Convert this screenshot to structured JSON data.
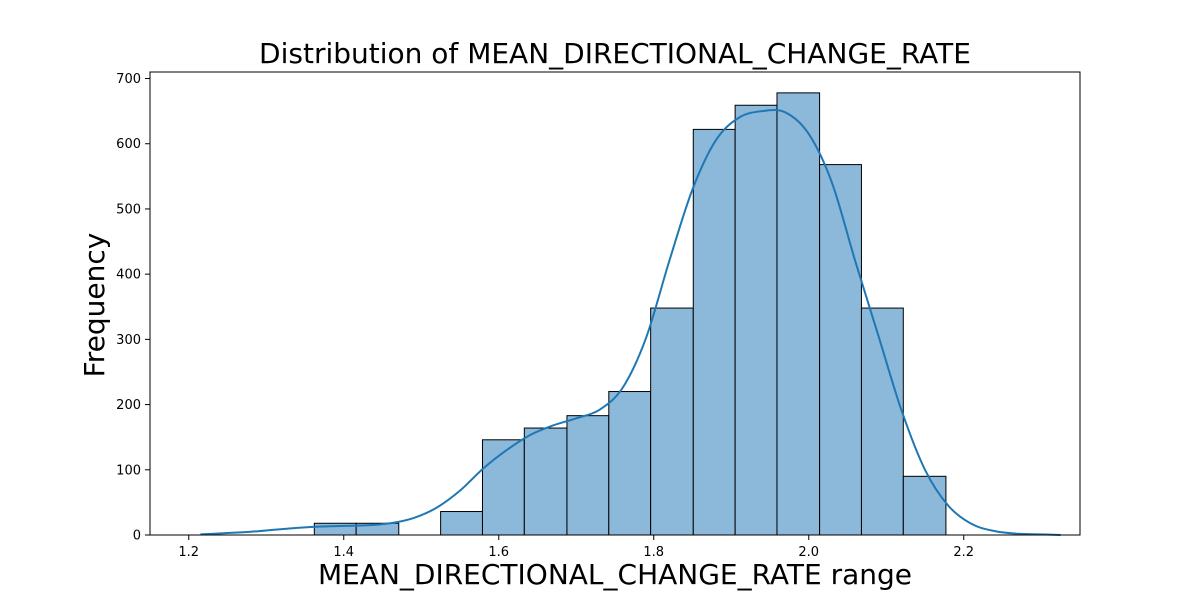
{
  "chart_data": {
    "type": "bar",
    "title": "Distribution of MEAN_DIRECTIONAL_CHANGE_RATE",
    "xlabel": "MEAN_DIRECTIONAL_CHANGE_RATE range",
    "ylabel": "Frequency",
    "xlim": [
      1.15,
      2.35
    ],
    "ylim": [
      0,
      710
    ],
    "x_ticks": [
      1.2,
      1.4,
      1.6,
      1.8,
      2.0,
      2.2
    ],
    "x_tick_labels": [
      "1.2",
      "1.4",
      "1.6",
      "1.8",
      "2.0",
      "2.2"
    ],
    "y_ticks": [
      0,
      100,
      200,
      300,
      400,
      500,
      600,
      700
    ],
    "y_tick_labels": [
      "0",
      "100",
      "200",
      "300",
      "400",
      "500",
      "600",
      "700"
    ],
    "grid": false,
    "bar_color": "#8cb8da",
    "edge_color": "#000000",
    "kde_color": "#1f77b4",
    "bins": [
      {
        "x0": 1.362,
        "x1": 1.416,
        "value": 18
      },
      {
        "x0": 1.416,
        "x1": 1.471,
        "value": 18
      },
      {
        "x0": 1.525,
        "x1": 1.579,
        "value": 36
      },
      {
        "x0": 1.579,
        "x1": 1.633,
        "value": 146
      },
      {
        "x0": 1.633,
        "x1": 1.688,
        "value": 164
      },
      {
        "x0": 1.688,
        "x1": 1.742,
        "value": 183
      },
      {
        "x0": 1.742,
        "x1": 1.796,
        "value": 220
      },
      {
        "x0": 1.796,
        "x1": 1.851,
        "value": 348
      },
      {
        "x0": 1.851,
        "x1": 1.905,
        "value": 622
      },
      {
        "x0": 1.905,
        "x1": 1.959,
        "value": 659
      },
      {
        "x0": 1.959,
        "x1": 2.014,
        "value": 678
      },
      {
        "x0": 2.014,
        "x1": 2.068,
        "value": 568
      },
      {
        "x0": 2.068,
        "x1": 2.122,
        "value": 348
      },
      {
        "x0": 2.122,
        "x1": 2.177,
        "value": 90
      }
    ],
    "kde": {
      "x": [
        1.215,
        1.25,
        1.28,
        1.31,
        1.34,
        1.37,
        1.4,
        1.43,
        1.46,
        1.49,
        1.52,
        1.55,
        1.58,
        1.61,
        1.64,
        1.67,
        1.7,
        1.73,
        1.76,
        1.79,
        1.82,
        1.85,
        1.88,
        1.91,
        1.94,
        1.97,
        2.0,
        2.03,
        2.06,
        2.09,
        2.12,
        2.15,
        2.18,
        2.21,
        2.24,
        2.27,
        2.3,
        2.325
      ],
      "y": [
        1,
        3,
        5,
        8,
        11,
        13,
        14,
        15,
        18,
        26,
        42,
        68,
        102,
        130,
        153,
        168,
        179,
        192,
        226,
        302,
        420,
        530,
        605,
        640,
        650,
        648,
        615,
        540,
        420,
        305,
        190,
        100,
        45,
        17,
        6,
        2,
        1,
        0
      ]
    }
  }
}
